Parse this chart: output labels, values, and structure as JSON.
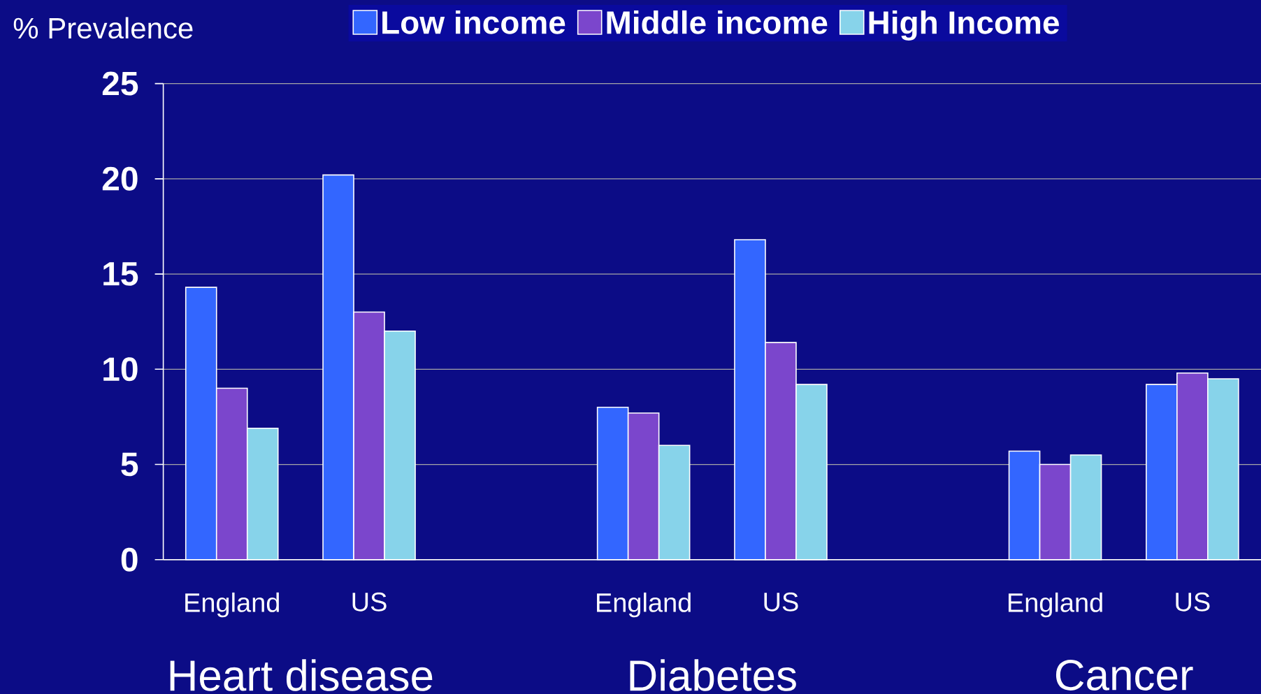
{
  "chart_data": {
    "type": "bar",
    "ylabel": "% Prevalence",
    "categories": [
      "England",
      "US",
      null,
      "England",
      "US",
      null,
      "England",
      "US"
    ],
    "series": [
      {
        "name": "Low income",
        "color": "#3366ff",
        "values": [
          14.3,
          20.2,
          null,
          8.0,
          16.8,
          null,
          5.7,
          9.2
        ]
      },
      {
        "name": "Middle income",
        "color": "#7b46cc",
        "values": [
          9.0,
          13.0,
          null,
          7.7,
          11.4,
          null,
          5.0,
          9.8
        ]
      },
      {
        "name": "High Income",
        "color": "#87d3ea",
        "values": [
          6.9,
          12.0,
          null,
          6.0,
          9.2,
          null,
          5.5,
          9.5
        ]
      }
    ],
    "ylim": [
      0,
      25
    ],
    "yticks": [
      0,
      5,
      10,
      15,
      20,
      25
    ],
    "grid": "y",
    "legend": "top",
    "annotations": [
      "Heart disease",
      "Diabetes",
      "Cancer"
    ]
  }
}
